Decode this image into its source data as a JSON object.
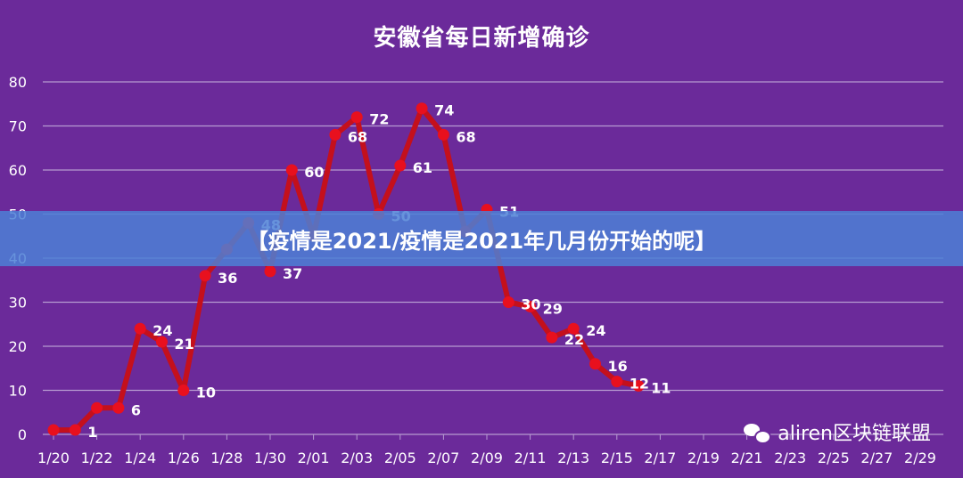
{
  "title": "安徽省每日新增确诊",
  "banner": "【疫情是2021/疫情是2021年几月份开始的呢】",
  "watermark": "aliren区块链联盟",
  "colors": {
    "background": "#6b2a9a",
    "line": "#c4101c",
    "point": "#e8101e",
    "grid": "#b79bd1",
    "text": "#ffffff",
    "banner": "#4c80d6"
  },
  "chart_data": {
    "type": "line",
    "title": "安徽省每日新增确诊",
    "ylim": [
      0,
      80
    ],
    "yticks": [
      0,
      10,
      20,
      30,
      40,
      50,
      60,
      70,
      80
    ],
    "grid": true,
    "xtick_labels": [
      "1/20",
      "1/22",
      "1/24",
      "1/26",
      "1/28",
      "1/30",
      "2/01",
      "2/03",
      "2/05",
      "2/07",
      "2/09",
      "2/11",
      "2/13",
      "2/15",
      "2/17",
      "2/19",
      "2/21",
      "2/23",
      "2/25",
      "2/27",
      "2/29"
    ],
    "series": [
      {
        "values": [
          1,
          1,
          6,
          6,
          24,
          21,
          10,
          36,
          42,
          48,
          37,
          60,
          45,
          68,
          72,
          50,
          61,
          74,
          68,
          46,
          51,
          30,
          29,
          22,
          24,
          16,
          12,
          11
        ]
      }
    ],
    "data_labels": [
      {
        "index": 1,
        "text": "1"
      },
      {
        "index": 3,
        "text": "6"
      },
      {
        "index": 4,
        "text": "24"
      },
      {
        "index": 5,
        "text": "21"
      },
      {
        "index": 6,
        "text": "10"
      },
      {
        "index": 7,
        "text": "36"
      },
      {
        "index": 9,
        "text": "48"
      },
      {
        "index": 10,
        "text": "37"
      },
      {
        "index": 11,
        "text": "60"
      },
      {
        "index": 13,
        "text": "68"
      },
      {
        "index": 14,
        "text": "72"
      },
      {
        "index": 15,
        "text": "50"
      },
      {
        "index": 16,
        "text": "61"
      },
      {
        "index": 17,
        "text": "74"
      },
      {
        "index": 18,
        "text": "68"
      },
      {
        "index": 20,
        "text": "51"
      },
      {
        "index": 21,
        "text": "30"
      },
      {
        "index": 22,
        "text": "29"
      },
      {
        "index": 23,
        "text": "22"
      },
      {
        "index": 24,
        "text": "24"
      },
      {
        "index": 25,
        "text": "16"
      },
      {
        "index": 26,
        "text": "12"
      },
      {
        "index": 27,
        "text": "11"
      }
    ]
  }
}
